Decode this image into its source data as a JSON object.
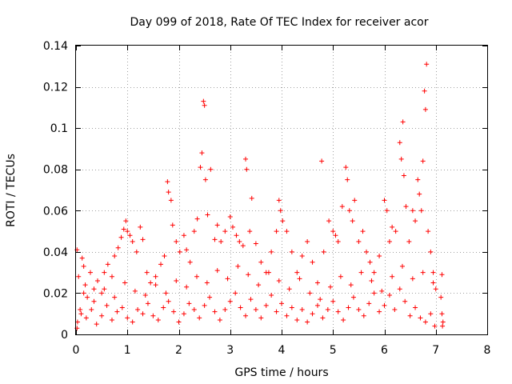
{
  "chart_data": {
    "type": "scatter",
    "title": "Day 099 of 2018, Rate Of TEC Index for receiver acor",
    "xlabel": "GPS time / hours",
    "ylabel": "ROTI / TECUs",
    "xlim": [
      0,
      8
    ],
    "ylim": [
      0,
      0.14
    ],
    "xticks": [
      "0",
      "1",
      "2",
      "3",
      "4",
      "5",
      "6",
      "7",
      "8"
    ],
    "yticks": [
      "0",
      "0.02",
      "0.04",
      "0.06",
      "0.08",
      "0.1",
      "0.12",
      "0.14"
    ],
    "marker": "+",
    "color": "#ff0000",
    "grid": true,
    "series": [
      {
        "name": "ROTI",
        "points": [
          [
            0.02,
            0.041
          ],
          [
            0.05,
            0.028
          ],
          [
            0.08,
            0.012
          ],
          [
            0.12,
            0.037
          ],
          [
            0.15,
            0.033
          ],
          [
            0.18,
            0.024
          ],
          [
            0.22,
            0.018
          ],
          [
            0.28,
            0.03
          ],
          [
            0.35,
            0.022
          ],
          [
            0.42,
            0.026
          ],
          [
            0.5,
            0.02
          ],
          [
            0.55,
            0.03
          ],
          [
            0.62,
            0.034
          ],
          [
            0.7,
            0.028
          ],
          [
            0.75,
            0.038
          ],
          [
            0.82,
            0.042
          ],
          [
            0.88,
            0.047
          ],
          [
            0.93,
            0.051
          ],
          [
            0.97,
            0.055
          ],
          [
            1.0,
            0.05
          ],
          [
            1.05,
            0.048
          ],
          [
            1.1,
            0.045
          ],
          [
            1.18,
            0.04
          ],
          [
            1.25,
            0.052
          ],
          [
            1.3,
            0.046
          ],
          [
            1.38,
            0.03
          ],
          [
            1.45,
            0.025
          ],
          [
            1.55,
            0.028
          ],
          [
            1.65,
            0.034
          ],
          [
            1.72,
            0.038
          ],
          [
            1.78,
            0.074
          ],
          [
            1.8,
            0.069
          ],
          [
            1.85,
            0.065
          ],
          [
            1.88,
            0.053
          ],
          [
            1.95,
            0.045
          ],
          [
            2.02,
            0.04
          ],
          [
            2.1,
            0.048
          ],
          [
            2.15,
            0.041
          ],
          [
            2.22,
            0.035
          ],
          [
            2.3,
            0.05
          ],
          [
            2.36,
            0.056
          ],
          [
            2.42,
            0.081
          ],
          [
            2.45,
            0.088
          ],
          [
            2.48,
            0.113
          ],
          [
            2.5,
            0.111
          ],
          [
            2.52,
            0.075
          ],
          [
            2.56,
            0.058
          ],
          [
            2.62,
            0.08
          ],
          [
            2.7,
            0.046
          ],
          [
            2.75,
            0.053
          ],
          [
            2.82,
            0.045
          ],
          [
            2.9,
            0.05
          ],
          [
            3.0,
            0.057
          ],
          [
            3.05,
            0.052
          ],
          [
            3.12,
            0.048
          ],
          [
            3.18,
            0.045
          ],
          [
            3.25,
            0.043
          ],
          [
            3.3,
            0.085
          ],
          [
            3.32,
            0.08
          ],
          [
            3.38,
            0.05
          ],
          [
            3.42,
            0.066
          ],
          [
            3.5,
            0.044
          ],
          [
            3.6,
            0.035
          ],
          [
            3.7,
            0.03
          ],
          [
            3.8,
            0.04
          ],
          [
            3.9,
            0.05
          ],
          [
            3.95,
            0.065
          ],
          [
            3.98,
            0.06
          ],
          [
            4.02,
            0.055
          ],
          [
            4.1,
            0.05
          ],
          [
            4.2,
            0.04
          ],
          [
            4.3,
            0.03
          ],
          [
            4.4,
            0.038
          ],
          [
            4.5,
            0.045
          ],
          [
            4.6,
            0.035
          ],
          [
            4.7,
            0.025
          ],
          [
            4.78,
            0.084
          ],
          [
            4.82,
            0.04
          ],
          [
            4.92,
            0.055
          ],
          [
            5.0,
            0.05
          ],
          [
            5.05,
            0.048
          ],
          [
            5.1,
            0.045
          ],
          [
            5.18,
            0.062
          ],
          [
            5.25,
            0.081
          ],
          [
            5.28,
            0.075
          ],
          [
            5.32,
            0.06
          ],
          [
            5.38,
            0.055
          ],
          [
            5.42,
            0.065
          ],
          [
            5.5,
            0.045
          ],
          [
            5.58,
            0.05
          ],
          [
            5.65,
            0.04
          ],
          [
            5.72,
            0.035
          ],
          [
            5.8,
            0.03
          ],
          [
            5.9,
            0.038
          ],
          [
            6.0,
            0.065
          ],
          [
            6.05,
            0.06
          ],
          [
            6.1,
            0.045
          ],
          [
            6.15,
            0.052
          ],
          [
            6.22,
            0.05
          ],
          [
            6.3,
            0.093
          ],
          [
            6.33,
            0.085
          ],
          [
            6.36,
            0.103
          ],
          [
            6.38,
            0.077
          ],
          [
            6.42,
            0.062
          ],
          [
            6.48,
            0.045
          ],
          [
            6.55,
            0.06
          ],
          [
            6.6,
            0.055
          ],
          [
            6.65,
            0.075
          ],
          [
            6.68,
            0.068
          ],
          [
            6.72,
            0.06
          ],
          [
            6.75,
            0.084
          ],
          [
            6.78,
            0.118
          ],
          [
            6.8,
            0.109
          ],
          [
            6.82,
            0.131
          ],
          [
            6.85,
            0.05
          ],
          [
            6.9,
            0.04
          ],
          [
            6.95,
            0.03
          ],
          [
            7.0,
            0.022
          ],
          [
            7.12,
            0.029
          ],
          [
            7.14,
            0.006
          ],
          [
            0.03,
            0.006
          ],
          [
            0.1,
            0.01
          ],
          [
            0.2,
            0.008
          ],
          [
            0.3,
            0.012
          ],
          [
            0.4,
            0.005
          ],
          [
            0.5,
            0.009
          ],
          [
            0.6,
            0.014
          ],
          [
            0.7,
            0.007
          ],
          [
            0.8,
            0.011
          ],
          [
            0.9,
            0.013
          ],
          [
            1.0,
            0.008
          ],
          [
            1.1,
            0.006
          ],
          [
            1.2,
            0.012
          ],
          [
            1.3,
            0.01
          ],
          [
            1.4,
            0.015
          ],
          [
            1.5,
            0.009
          ],
          [
            1.6,
            0.007
          ],
          [
            1.7,
            0.013
          ],
          [
            1.8,
            0.016
          ],
          [
            1.9,
            0.011
          ],
          [
            2.0,
            0.006
          ],
          [
            2.1,
            0.01
          ],
          [
            2.2,
            0.015
          ],
          [
            2.3,
            0.012
          ],
          [
            2.4,
            0.008
          ],
          [
            2.5,
            0.014
          ],
          [
            2.6,
            0.018
          ],
          [
            2.7,
            0.011
          ],
          [
            2.8,
            0.007
          ],
          [
            2.9,
            0.012
          ],
          [
            3.0,
            0.016
          ],
          [
            3.1,
            0.02
          ],
          [
            3.2,
            0.013
          ],
          [
            3.3,
            0.009
          ],
          [
            3.4,
            0.017
          ],
          [
            3.5,
            0.012
          ],
          [
            3.6,
            0.008
          ],
          [
            3.7,
            0.014
          ],
          [
            3.8,
            0.019
          ],
          [
            3.9,
            0.011
          ],
          [
            4.0,
            0.015
          ],
          [
            4.1,
            0.009
          ],
          [
            4.2,
            0.013
          ],
          [
            4.3,
            0.007
          ],
          [
            4.4,
            0.012
          ],
          [
            4.5,
            0.006
          ],
          [
            4.6,
            0.01
          ],
          [
            4.7,
            0.014
          ],
          [
            4.8,
            0.008
          ],
          [
            4.9,
            0.012
          ],
          [
            5.0,
            0.016
          ],
          [
            5.1,
            0.011
          ],
          [
            5.2,
            0.007
          ],
          [
            5.3,
            0.013
          ],
          [
            5.4,
            0.018
          ],
          [
            5.5,
            0.012
          ],
          [
            5.6,
            0.009
          ],
          [
            5.7,
            0.015
          ],
          [
            5.8,
            0.02
          ],
          [
            5.9,
            0.011
          ],
          [
            6.0,
            0.014
          ],
          [
            6.1,
            0.019
          ],
          [
            6.2,
            0.012
          ],
          [
            6.3,
            0.022
          ],
          [
            6.4,
            0.016
          ],
          [
            6.5,
            0.009
          ],
          [
            6.6,
            0.013
          ],
          [
            6.7,
            0.008
          ],
          [
            6.8,
            0.006
          ],
          [
            6.9,
            0.01
          ],
          [
            0.15,
            0.02
          ],
          [
            0.35,
            0.016
          ],
          [
            0.55,
            0.022
          ],
          [
            0.75,
            0.018
          ],
          [
            0.95,
            0.025
          ],
          [
            1.15,
            0.021
          ],
          [
            1.35,
            0.019
          ],
          [
            1.55,
            0.024
          ],
          [
            1.75,
            0.02
          ],
          [
            1.95,
            0.026
          ],
          [
            2.15,
            0.023
          ],
          [
            2.35,
            0.028
          ],
          [
            2.55,
            0.025
          ],
          [
            2.75,
            0.031
          ],
          [
            2.95,
            0.027
          ],
          [
            3.15,
            0.033
          ],
          [
            3.35,
            0.029
          ],
          [
            3.55,
            0.024
          ],
          [
            3.75,
            0.03
          ],
          [
            3.95,
            0.026
          ],
          [
            4.15,
            0.022
          ],
          [
            4.35,
            0.027
          ],
          [
            4.55,
            0.02
          ],
          [
            4.75,
            0.017
          ],
          [
            4.95,
            0.023
          ],
          [
            5.15,
            0.028
          ],
          [
            5.35,
            0.024
          ],
          [
            5.55,
            0.03
          ],
          [
            5.75,
            0.026
          ],
          [
            5.95,
            0.021
          ],
          [
            6.15,
            0.028
          ],
          [
            6.35,
            0.033
          ],
          [
            6.55,
            0.027
          ],
          [
            6.75,
            0.03
          ],
          [
            6.95,
            0.025
          ],
          [
            7.1,
            0.018
          ],
          [
            7.12,
            0.01
          ],
          [
            7.13,
            0.004
          ],
          [
            6.98,
            0.004
          ],
          [
            0.02,
            0.003
          ]
        ]
      }
    ]
  }
}
